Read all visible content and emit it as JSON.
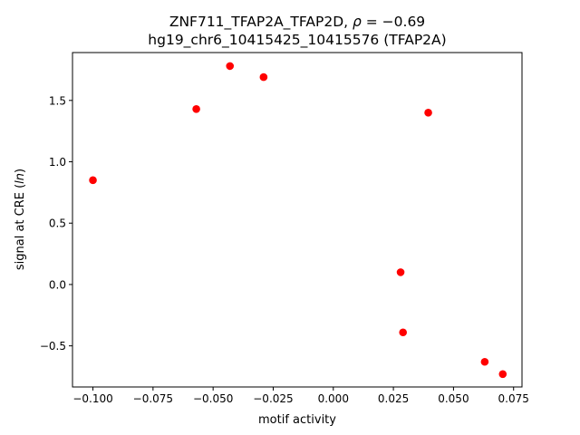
{
  "chart_data": {
    "type": "scatter",
    "title_line1_prefix": "ZNF711_TFAP2A_TFAP2D, ",
    "title_rho_symbol": "ρ",
    "title_rho_value": " = −0.69",
    "title_line2": "hg19_chr6_10415425_10415576 (TFAP2A)",
    "xlabel": "motif activity",
    "ylabel_prefix": "signal at CRE (",
    "ylabel_italic": "ln",
    "ylabel_suffix": ")",
    "xlim": [
      -0.1085,
      0.0785
    ],
    "ylim": [
      -0.835,
      1.89
    ],
    "xticks": [
      -0.1,
      -0.075,
      -0.05,
      -0.025,
      0.0,
      0.025,
      0.05,
      0.075
    ],
    "xtick_labels": [
      "−0.100",
      "−0.075",
      "−0.050",
      "−0.025",
      "0.000",
      "0.025",
      "0.050",
      "0.075"
    ],
    "yticks": [
      -0.5,
      0.0,
      0.5,
      1.0,
      1.5
    ],
    "ytick_labels": [
      "−0.5",
      "0.0",
      "0.5",
      "1.0",
      "1.5"
    ],
    "grid": false,
    "marker_color": "#ff0000",
    "points": [
      {
        "x": -0.1,
        "y": 0.85
      },
      {
        "x": -0.057,
        "y": 1.43
      },
      {
        "x": -0.043,
        "y": 1.78
      },
      {
        "x": -0.029,
        "y": 1.69
      },
      {
        "x": 0.0395,
        "y": 1.4
      },
      {
        "x": 0.028,
        "y": 0.1
      },
      {
        "x": 0.029,
        "y": -0.39
      },
      {
        "x": 0.063,
        "y": -0.63
      },
      {
        "x": 0.0705,
        "y": -0.73
      }
    ]
  }
}
